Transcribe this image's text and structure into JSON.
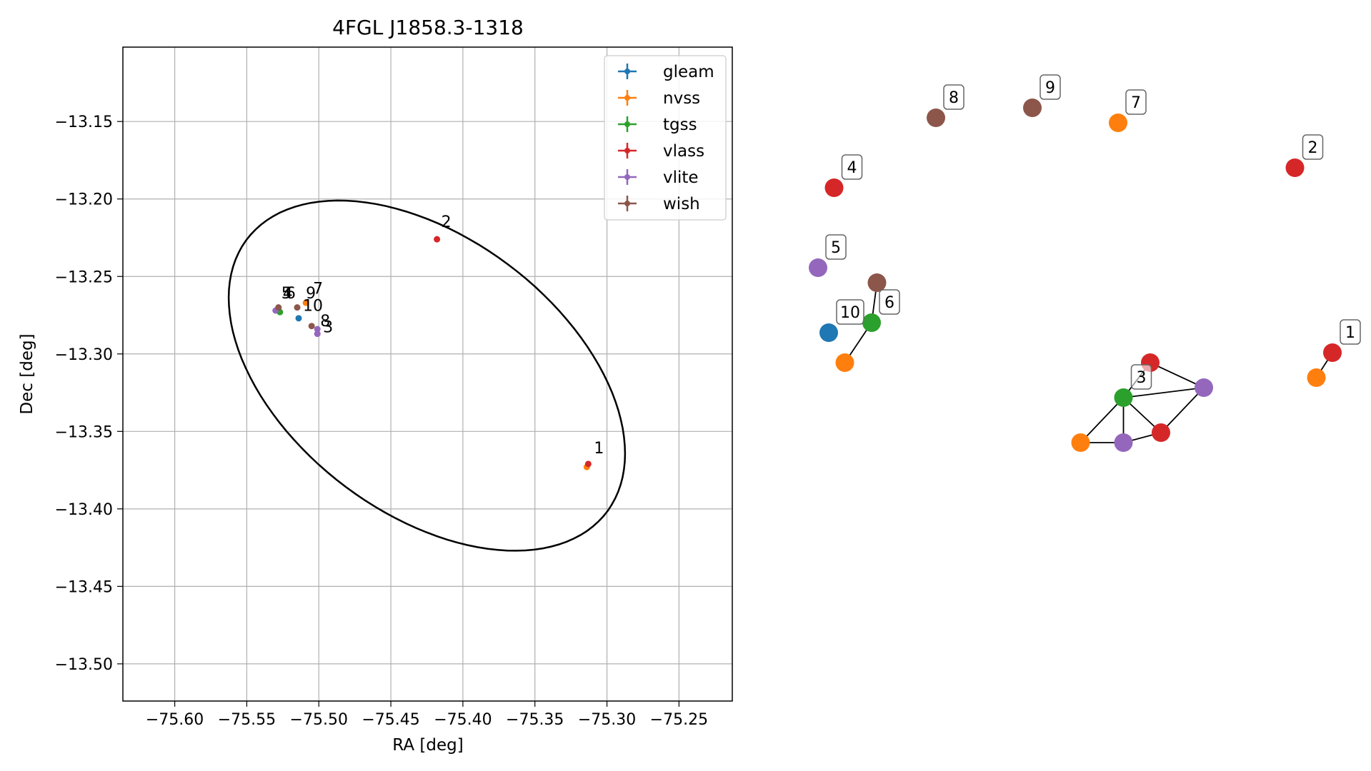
{
  "chart_data": [
    {
      "type": "scatter",
      "title": "4FGL J1858.3-1318",
      "xlabel": "RA [deg]",
      "ylabel": "Dec [deg]",
      "xlim": [
        -75.636,
        -75.213
      ],
      "ylim": [
        -13.524,
        -13.102
      ],
      "x_ticks": [
        -75.6,
        -75.55,
        -75.5,
        -75.45,
        -75.4,
        -75.35,
        -75.3,
        -75.25
      ],
      "x_tick_labels": [
        "−75.60",
        "−75.55",
        "−75.50",
        "−75.45",
        "−75.40",
        "−75.35",
        "−75.30",
        "−75.25"
      ],
      "y_ticks": [
        -13.15,
        -13.2,
        -13.25,
        -13.3,
        -13.35,
        -13.4,
        -13.45,
        -13.5
      ],
      "y_tick_labels": [
        "−13.15",
        "−13.20",
        "−13.25",
        "−13.30",
        "−13.35",
        "−13.40",
        "−13.45",
        "−13.50"
      ],
      "grid": true,
      "legend_position": "top-right",
      "series": [
        {
          "name": "gleam",
          "color": "#1f77b4",
          "points": [
            [
              -75.514,
              -13.277
            ]
          ]
        },
        {
          "name": "nvss",
          "color": "#ff7f0e",
          "points": [
            [
              -75.509,
              -13.267
            ],
            [
              -75.314,
              -13.373
            ]
          ]
        },
        {
          "name": "tgss",
          "color": "#2ca02c",
          "points": [
            [
              -75.527,
              -13.273
            ]
          ]
        },
        {
          "name": "vlass",
          "color": "#d62728",
          "points": [
            [
              -75.418,
              -13.226
            ],
            [
              -75.313,
              -13.371
            ]
          ]
        },
        {
          "name": "vlite",
          "color": "#9467bd",
          "points": [
            [
              -75.53,
              -13.272
            ],
            [
              -75.501,
              -13.287
            ],
            [
              -75.501,
              -13.284
            ]
          ]
        },
        {
          "name": "wish",
          "color": "#8c564b",
          "points": [
            [
              -75.528,
              -13.27
            ],
            [
              -75.515,
              -13.27
            ],
            [
              -75.505,
              -13.282
            ]
          ]
        }
      ],
      "point_labels": [
        {
          "text": "1",
          "x": -75.311,
          "y": -13.366
        },
        {
          "text": "2",
          "x": -75.417,
          "y": -13.22
        },
        {
          "text": "3",
          "x": -75.499,
          "y": -13.288
        },
        {
          "text": "4",
          "x": -75.527,
          "y": -13.266
        },
        {
          "text": "5",
          "x": -75.528,
          "y": -13.266
        },
        {
          "text": "6",
          "x": -75.525,
          "y": -13.266
        },
        {
          "text": "7",
          "x": -75.506,
          "y": -13.263
        },
        {
          "text": "8",
          "x": -75.501,
          "y": -13.284
        },
        {
          "text": "9",
          "x": -75.511,
          "y": -13.266
        },
        {
          "text": "10",
          "x": -75.513,
          "y": -13.274
        }
      ],
      "ellipse": {
        "center": [
          -75.425,
          -13.314
        ],
        "semi_major_deg": 0.153,
        "semi_minor_deg": 0.091,
        "angle_deg": -33
      }
    },
    {
      "type": "network",
      "title": "",
      "nodes": [
        {
          "id": "n1",
          "color": "#d62728",
          "label": "4",
          "x": 0.05,
          "y": 0.19
        },
        {
          "id": "n2",
          "color": "#8c564b",
          "label": "8",
          "x": 0.24,
          "y": 0.05
        },
        {
          "id": "n3",
          "color": "#8c564b",
          "label": "9",
          "x": 0.42,
          "y": 0.03
        },
        {
          "id": "n4",
          "color": "#ff7f0e",
          "label": "7",
          "x": 0.58,
          "y": 0.06
        },
        {
          "id": "n5",
          "color": "#d62728",
          "label": "2",
          "x": 0.91,
          "y": 0.15
        },
        {
          "id": "n6",
          "color": "#9467bd",
          "label": "5",
          "x": 0.02,
          "y": 0.35
        },
        {
          "id": "n7",
          "color": "#8c564b",
          "label": "",
          "x": 0.13,
          "y": 0.38
        },
        {
          "id": "n8",
          "color": "#2ca02c",
          "label": "6",
          "x": 0.12,
          "y": 0.46
        },
        {
          "id": "n9",
          "color": "#1f77b4",
          "label": "10",
          "x": 0.04,
          "y": 0.48
        },
        {
          "id": "n10",
          "color": "#ff7f0e",
          "label": "",
          "x": 0.07,
          "y": 0.54
        },
        {
          "id": "n11",
          "color": "#d62728",
          "label": "",
          "x": 0.64,
          "y": 0.54
        },
        {
          "id": "n12",
          "color": "#9467bd",
          "label": "",
          "x": 0.74,
          "y": 0.59
        },
        {
          "id": "n13",
          "color": "#2ca02c",
          "label": "3",
          "x": 0.59,
          "y": 0.61
        },
        {
          "id": "n14",
          "color": "#d62728",
          "label": "",
          "x": 0.66,
          "y": 0.68
        },
        {
          "id": "n15",
          "color": "#ff7f0e",
          "label": "",
          "x": 0.51,
          "y": 0.7
        },
        {
          "id": "n16",
          "color": "#9467bd",
          "label": "",
          "x": 0.59,
          "y": 0.7
        },
        {
          "id": "n17",
          "color": "#d62728",
          "label": "1",
          "x": 0.98,
          "y": 0.52
        },
        {
          "id": "n18",
          "color": "#ff7f0e",
          "label": "",
          "x": 0.95,
          "y": 0.57
        }
      ],
      "edges": [
        [
          "n7",
          "n8"
        ],
        [
          "n8",
          "n10"
        ],
        [
          "n11",
          "n12"
        ],
        [
          "n11",
          "n13"
        ],
        [
          "n12",
          "n13"
        ],
        [
          "n12",
          "n14"
        ],
        [
          "n13",
          "n14"
        ],
        [
          "n13",
          "n15"
        ],
        [
          "n13",
          "n16"
        ],
        [
          "n14",
          "n16"
        ],
        [
          "n15",
          "n16"
        ],
        [
          "n17",
          "n18"
        ]
      ]
    }
  ]
}
